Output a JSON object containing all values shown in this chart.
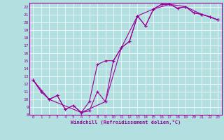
{
  "xlabel": "Windchill (Refroidissement éolien,°C)",
  "bg_color": "#b2e0e0",
  "line_color": "#990099",
  "grid_color": "#ffffff",
  "xlim": [
    -0.5,
    23.5
  ],
  "ylim": [
    8,
    22.5
  ],
  "xticks": [
    0,
    1,
    2,
    3,
    4,
    5,
    6,
    7,
    8,
    9,
    10,
    11,
    12,
    13,
    14,
    15,
    16,
    17,
    18,
    19,
    20,
    21,
    22,
    23
  ],
  "yticks": [
    8,
    9,
    10,
    11,
    12,
    13,
    14,
    15,
    16,
    17,
    18,
    19,
    20,
    21,
    22
  ],
  "line1_x": [
    0,
    1,
    2,
    3,
    4,
    5,
    6,
    7,
    8,
    9,
    10,
    11,
    12,
    13,
    14,
    15,
    16,
    17,
    18,
    19,
    20,
    21,
    22,
    23
  ],
  "line1_y": [
    12.5,
    11.0,
    10.0,
    10.5,
    8.7,
    9.2,
    8.3,
    8.5,
    11.0,
    9.7,
    15.0,
    16.7,
    17.5,
    20.8,
    19.5,
    21.7,
    22.3,
    22.3,
    21.8,
    22.0,
    21.2,
    21.0,
    20.7,
    20.3
  ],
  "line2_x": [
    0,
    1,
    2,
    3,
    4,
    5,
    6,
    7,
    8,
    9,
    10,
    11,
    12,
    13,
    14,
    15,
    16,
    17,
    18,
    19,
    20,
    21,
    22,
    23
  ],
  "line2_y": [
    12.5,
    11.0,
    10.0,
    10.5,
    8.7,
    9.2,
    8.3,
    9.7,
    14.5,
    15.0,
    15.0,
    16.7,
    17.5,
    20.8,
    19.5,
    21.7,
    22.3,
    22.3,
    21.8,
    22.0,
    21.2,
    21.0,
    20.7,
    20.3
  ],
  "line3_x": [
    0,
    2,
    6,
    9,
    11,
    13,
    15,
    17,
    19,
    21,
    23
  ],
  "line3_y": [
    12.5,
    10.0,
    8.3,
    9.7,
    16.7,
    20.8,
    21.7,
    22.3,
    22.0,
    21.0,
    20.3
  ]
}
